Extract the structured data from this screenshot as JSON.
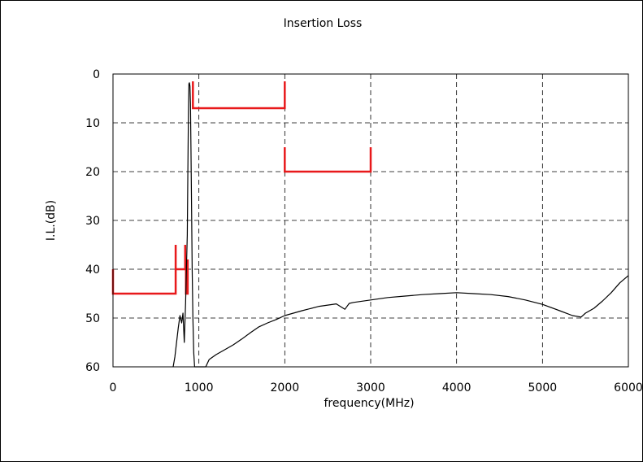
{
  "chart_data": {
    "type": "line",
    "title": "Insertion Loss",
    "xlabel": "frequency(MHz)",
    "ylabel": "I.L.(dB)",
    "xlim": [
      0,
      6000
    ],
    "ylim": [
      0,
      60
    ],
    "y_inverted": true,
    "grid": true,
    "x_ticks": [
      "0",
      "1000",
      "2000",
      "3000",
      "4000",
      "5000",
      "6000"
    ],
    "y_ticks": [
      "0",
      "10",
      "20",
      "30",
      "40",
      "50",
      "60"
    ],
    "colors": {
      "trace": "#000000",
      "mask": "#e8191b",
      "grid": "#000000"
    },
    "series": [
      {
        "points": [
          [
            700,
            60
          ],
          [
            720,
            58
          ],
          [
            740,
            55
          ],
          [
            760,
            52
          ],
          [
            780,
            49.5
          ],
          [
            800,
            51
          ],
          [
            815,
            49
          ],
          [
            830,
            55
          ],
          [
            845,
            47
          ],
          [
            855,
            40
          ],
          [
            865,
            33
          ],
          [
            872,
            20
          ],
          [
            878,
            8
          ],
          [
            884,
            2
          ],
          [
            890,
            1.8
          ],
          [
            896,
            2.5
          ],
          [
            902,
            6
          ],
          [
            908,
            15
          ],
          [
            915,
            28
          ],
          [
            922,
            40
          ],
          [
            930,
            50
          ],
          [
            940,
            57
          ],
          [
            950,
            60
          ],
          [
            1080,
            60
          ],
          [
            1120,
            58.5
          ],
          [
            1200,
            57.5
          ],
          [
            1300,
            56.5
          ],
          [
            1400,
            55.5
          ],
          [
            1500,
            54.3
          ],
          [
            1600,
            53
          ],
          [
            1700,
            51.8
          ],
          [
            1800,
            51
          ],
          [
            1900,
            50.3
          ],
          [
            2000,
            49.5
          ],
          [
            2200,
            48.5
          ],
          [
            2400,
            47.6
          ],
          [
            2600,
            47.1
          ],
          [
            2700,
            48.2
          ],
          [
            2750,
            47
          ],
          [
            2800,
            46.8
          ],
          [
            3000,
            46.3
          ],
          [
            3200,
            45.8
          ],
          [
            3400,
            45.5
          ],
          [
            3600,
            45.2
          ],
          [
            3800,
            45.0
          ],
          [
            4000,
            44.8
          ],
          [
            4200,
            45.0
          ],
          [
            4400,
            45.2
          ],
          [
            4600,
            45.6
          ],
          [
            4800,
            46.3
          ],
          [
            5000,
            47.2
          ],
          [
            5200,
            48.5
          ],
          [
            5350,
            49.5
          ],
          [
            5450,
            49.8
          ],
          [
            5500,
            49.0
          ],
          [
            5600,
            48.0
          ],
          [
            5700,
            46.5
          ],
          [
            5800,
            44.8
          ],
          [
            5900,
            42.8
          ],
          [
            6000,
            41.3
          ]
        ]
      }
    ],
    "mask": [
      [
        [
          0,
          40
        ],
        [
          0,
          45
        ],
        [
          730,
          45
        ],
        [
          730,
          35
        ]
      ],
      [
        [
          730,
          40
        ],
        [
          840,
          40
        ],
        [
          840,
          35
        ]
      ],
      [
        [
          850,
          38
        ],
        [
          850,
          45
        ],
        [
          870,
          45
        ],
        [
          870,
          38
        ]
      ],
      [
        [
          930,
          1.5
        ],
        [
          930,
          7
        ],
        [
          2000,
          7
        ],
        [
          2000,
          1.5
        ]
      ],
      [
        [
          2000,
          15
        ],
        [
          2000,
          20
        ],
        [
          3000,
          20
        ],
        [
          3000,
          15
        ]
      ]
    ]
  }
}
